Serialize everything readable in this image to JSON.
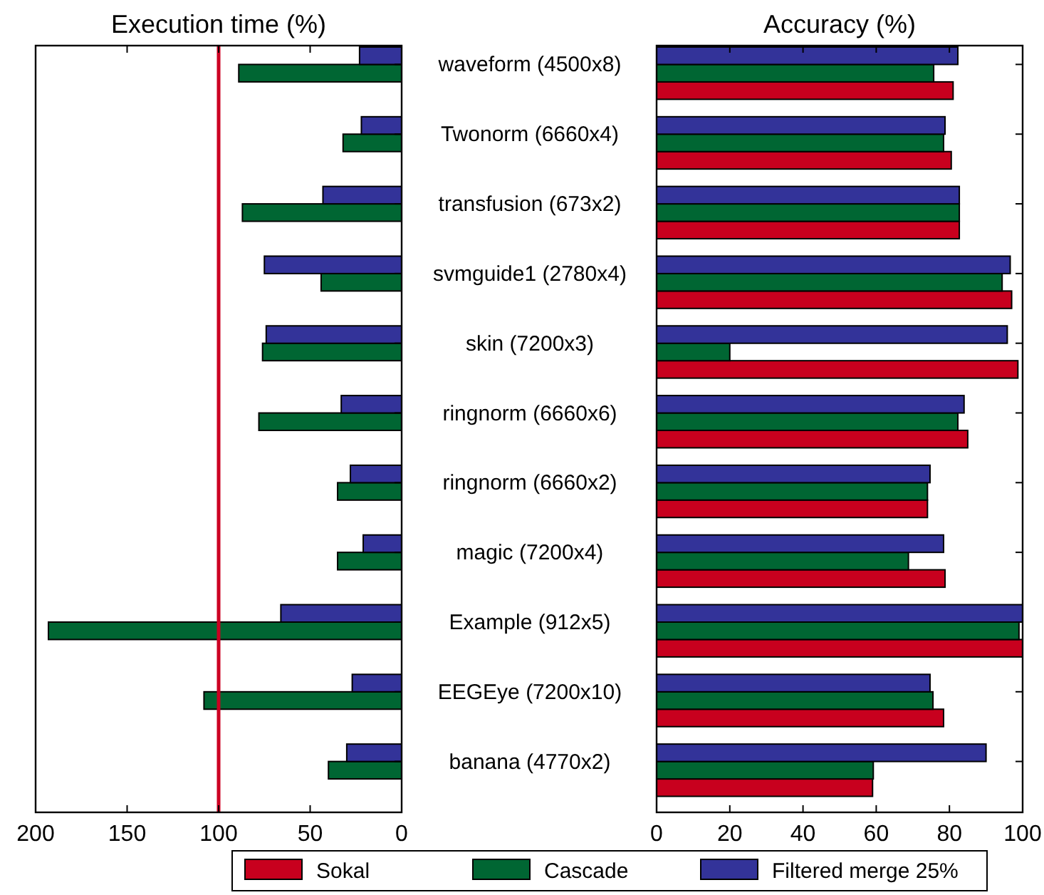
{
  "chart_data": [
    {
      "type": "bar",
      "orientation": "horizontal",
      "title": "Execution time (%)",
      "categories": [
        null,
        null,
        null,
        null,
        null,
        null,
        null,
        null,
        null,
        null,
        null
      ],
      "series": [
        {
          "color": "#006633",
          "values": [
            89,
            32,
            87,
            44,
            76,
            78,
            35,
            35,
            193,
            108,
            40
          ]
        },
        {
          "color": "#333399",
          "values": [
            23,
            22,
            43,
            75,
            74,
            33,
            28,
            21,
            66,
            27,
            30
          ]
        }
      ],
      "xlim": [
        200,
        0
      ],
      "xticks": [
        200,
        150,
        100,
        50,
        0
      ],
      "tick_labels": "x",
      "legend": false,
      "ref_lines": [
        {
          "axis": "x",
          "value": 100,
          "color": "#cc0022"
        }
      ]
    },
    {
      "type": "bar",
      "orientation": "horizontal",
      "title": "Accuracy (%)",
      "categories": [
        "waveform (4500x8)",
        "Twonorm (6660x4)",
        "transfusion (673x2)",
        "svmguide1 (2780x4)",
        "skin (7200x3)",
        "ringnorm (6660x6)",
        "ringnorm (6660x2)",
        "magic (7200x4)",
        "Example (912x5)",
        "EEGEye (7200x10)",
        "banana (4770x2)"
      ],
      "series": [
        {
          "name": "Sokal",
          "color": "#c8001e",
          "values": [
            81,
            80.5,
            82.7,
            97,
            98.7,
            85,
            74,
            78.8,
            100,
            78.4,
            59
          ]
        },
        {
          "name": "Cascade",
          "color": "#006633",
          "values": [
            75.7,
            78.4,
            82.7,
            94.4,
            20,
            82.3,
            74,
            68.8,
            99,
            75.5,
            59.2
          ]
        },
        {
          "name": "Filtered merge 25%",
          "color": "#333399",
          "values": [
            82.3,
            78.8,
            82.7,
            96.6,
            95.8,
            84,
            74.7,
            78.4,
            100,
            74.7,
            90
          ]
        }
      ],
      "xlim": [
        0,
        100
      ],
      "xticks": [
        0,
        20,
        40,
        60,
        80,
        100
      ],
      "legend": "bottom"
    }
  ]
}
